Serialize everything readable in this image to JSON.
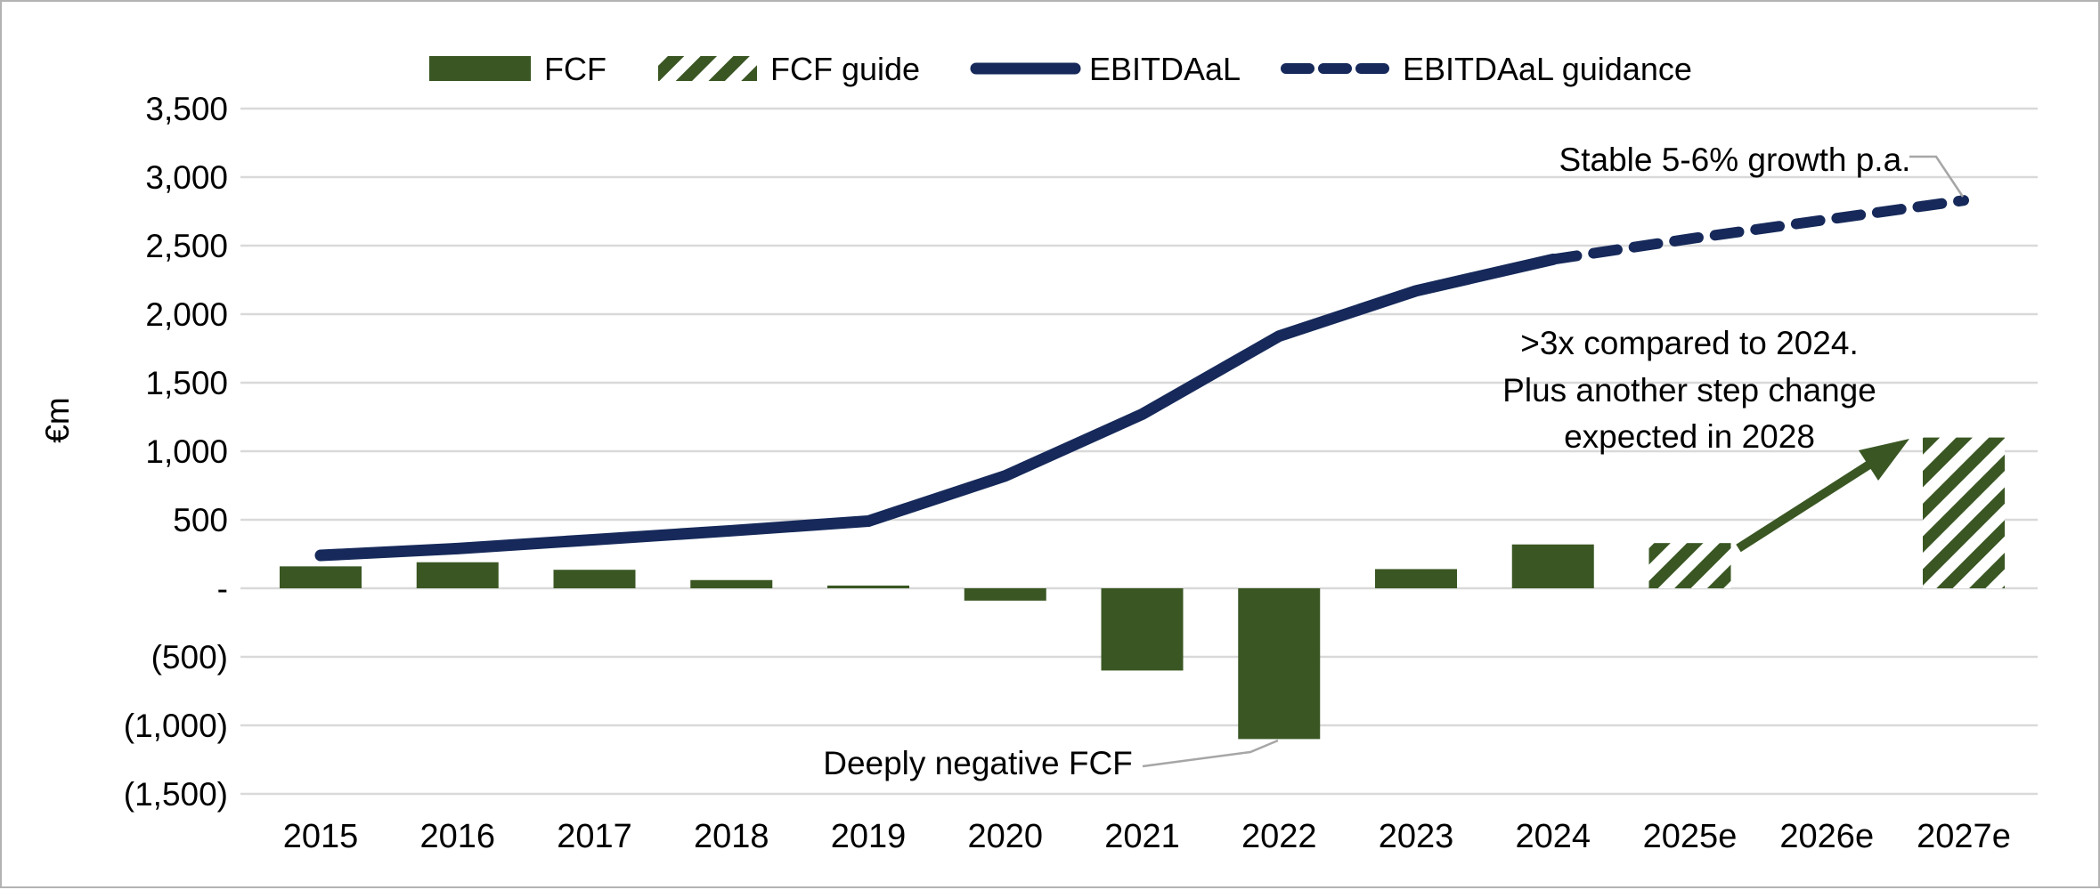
{
  "legend": {
    "items": [
      {
        "label": "FCF",
        "swatch": "solid-bar"
      },
      {
        "label": "FCF guide",
        "swatch": "hatched-bar"
      },
      {
        "label": "EBITDAaL",
        "swatch": "solid-line"
      },
      {
        "label": "EBITDAaL guidance",
        "swatch": "dashed-line"
      }
    ]
  },
  "chart_data": {
    "type": "bar",
    "subtype": "combo-bar-line",
    "title": "",
    "ylabel": "€m",
    "xlabel": "",
    "grid": true,
    "legend_position": "top",
    "categories": [
      "2015",
      "2016",
      "2017",
      "2018",
      "2019",
      "2020",
      "2021",
      "2022",
      "2023",
      "2024",
      "2025e",
      "2026e",
      "2027e"
    ],
    "series": [
      {
        "name": "FCF",
        "type": "bar",
        "style": "solid",
        "values": [
          160,
          190,
          135,
          60,
          20,
          -90,
          -600,
          -1100,
          140,
          320,
          null,
          null,
          null
        ]
      },
      {
        "name": "FCF guide",
        "type": "bar",
        "style": "hatched",
        "values": [
          null,
          null,
          null,
          null,
          null,
          null,
          null,
          null,
          null,
          null,
          330,
          null,
          1100
        ]
      },
      {
        "name": "EBITDAaL",
        "type": "line",
        "style": "solid",
        "values": [
          240,
          290,
          355,
          420,
          490,
          820,
          1270,
          1840,
          2170,
          2400,
          null,
          null,
          null
        ]
      },
      {
        "name": "EBITDAaL guidance",
        "type": "line",
        "style": "dashed",
        "values": [
          null,
          null,
          null,
          null,
          null,
          null,
          null,
          null,
          null,
          2400,
          2550,
          2690,
          2830
        ]
      }
    ],
    "y_axis": {
      "min": -1500,
      "max": 3500,
      "step": 500,
      "tick_labels": [
        "3,500",
        "3,000",
        "2,500",
        "2,000",
        "1,500",
        "1,000",
        "500",
        "-",
        "(500)",
        "(1,000)",
        "(1,500)"
      ]
    },
    "annotations": {
      "stable_growth": {
        "text": "Stable 5-6% growth p.a."
      },
      "step_change": {
        "lines": [
          ">3x compared to 2024.",
          "Plus another step change",
          "expected in 2028"
        ]
      },
      "deeply_negative": {
        "text": "Deeply negative FCF"
      }
    },
    "colors": {
      "bar_green": "#3a5723",
      "line_navy": "#16295a",
      "gridline": "#d9d9d9",
      "leader_gray": "#a6a6a6",
      "text": "#000000"
    }
  }
}
